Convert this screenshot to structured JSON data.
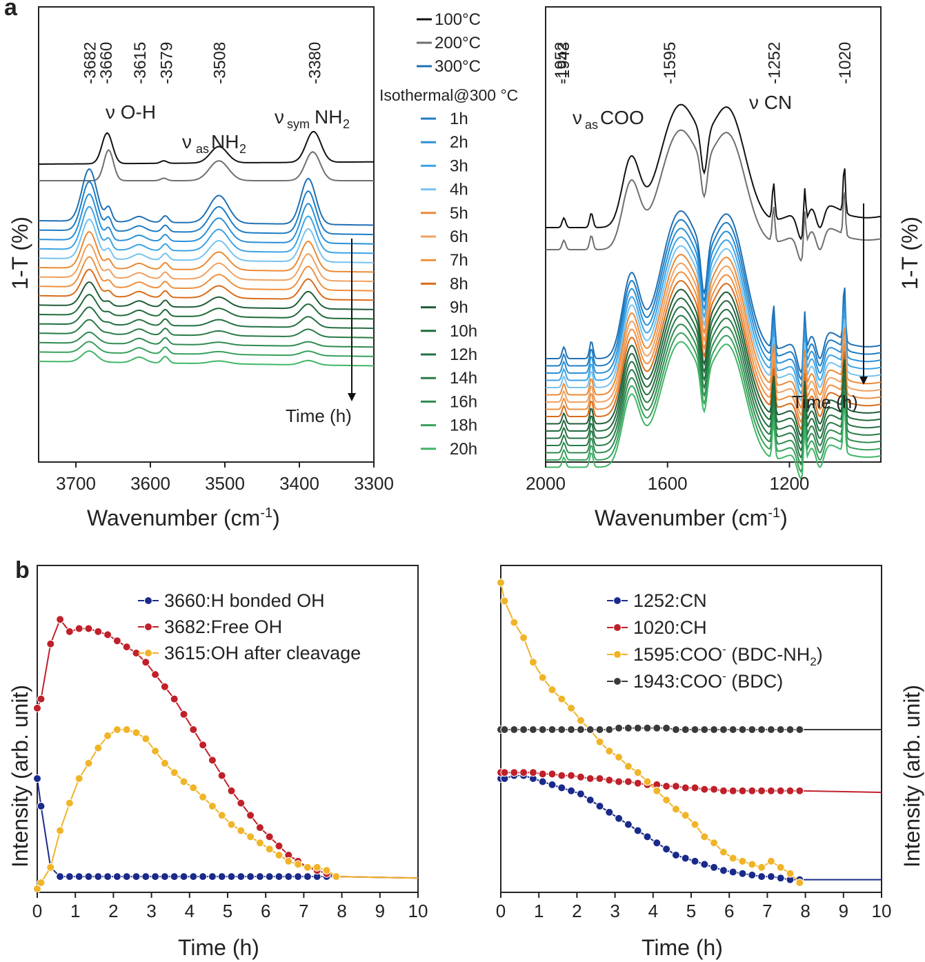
{
  "panels": {
    "a_label": "a",
    "b_label": "b"
  },
  "legend": {
    "temps": [
      "100°C",
      "200°C",
      "300°C"
    ],
    "iso_title": "Isothermal@300 °C",
    "hours": [
      "1h",
      "2h",
      "3h",
      "4h",
      "5h",
      "6h",
      "7h",
      "8h",
      "9h",
      "10h",
      "12h",
      "14h",
      "16h",
      "18h",
      "20h"
    ]
  },
  "palette": {
    "curves": [
      "#111111",
      "#6e6e6e",
      "#1f6fb3",
      "#1c7cc4",
      "#2a8fd6",
      "#3aa3e6",
      "#76c2ee",
      "#ea8a35",
      "#f0a060",
      "#ef8f3e",
      "#d86c1a",
      "#1f5c36",
      "#1f6a3b",
      "#236f41",
      "#287a47",
      "#2f8a50",
      "#36a05a",
      "#3fb566"
    ],
    "legend_hours": [
      "#1c7cc4",
      "#2a8fd6",
      "#3aa3e6",
      "#76c2ee",
      "#ea8a35",
      "#f0a060",
      "#ef8f3e",
      "#d86c1a",
      "#1f5c36",
      "#1f6a3b",
      "#236f41",
      "#287a47",
      "#2f8a50",
      "#36a05a",
      "#3fb566"
    ],
    "oh_bonded": "#1a2a8a",
    "oh_free": "#c0202a",
    "oh_cleave": "#f0b429",
    "bdc": "#3a3a3a"
  },
  "chart_data": [
    {
      "id": "a-left",
      "type": "line",
      "title": "",
      "xlabel": "Wavenumber (cm",
      "xlabel_sup": "-1",
      "xlabel_end": ")",
      "ylabel": "1-T (%)",
      "xlim": [
        3750,
        3300
      ],
      "xticks": [
        3700,
        3600,
        3500,
        3400,
        3300
      ],
      "peak_labels": [
        "-3682",
        "-3660",
        "-3615",
        "-3579",
        "-3508",
        "-3380"
      ],
      "peak_positions": [
        3682,
        3660,
        3615,
        3579,
        3508,
        3380
      ],
      "annotations": [
        "ν O-H",
        "ν",
        "as",
        "NH",
        "2",
        "ν",
        "sym",
        "NH",
        "2"
      ],
      "time_label": "Time (h)",
      "series_count": 18
    },
    {
      "id": "a-right",
      "type": "line",
      "xlabel": "Wavenumber (cm",
      "xlabel_sup": "-1",
      "xlabel_end": ")",
      "ylabel": "1-T (%)",
      "xlim": [
        2000,
        900
      ],
      "xticks": [
        2000,
        1600,
        1200
      ],
      "peak_labels": [
        "-1952",
        "-1943",
        "-1595",
        "-1252",
        "-1020"
      ],
      "peak_positions": [
        1952,
        1943,
        1595,
        1252,
        1020
      ],
      "annotations": [
        "ν",
        "as",
        "COO",
        "ν CN"
      ],
      "time_label": "Time (h)",
      "series_count": 18
    },
    {
      "id": "b-left",
      "type": "line",
      "xlabel": "Time (h)",
      "ylabel": "Intensity (arb. unit)",
      "xlim": [
        0,
        10
      ],
      "ylim": [
        0,
        1
      ],
      "xticks": [
        "0",
        "1",
        "2",
        "3",
        "4",
        "5",
        "6",
        "7",
        "8",
        "9",
        "10"
      ],
      "series": [
        {
          "name": "3660:H bonded OH",
          "color_key": "oh_bonded",
          "x": [
            0,
            0.1,
            0.35,
            0.6,
            0.85,
            1.1,
            1.35,
            1.6,
            1.85,
            2.1,
            2.35,
            2.6,
            2.85,
            3.1,
            3.35,
            3.6,
            3.85,
            4.1,
            4.35,
            4.6,
            4.85,
            5.1,
            5.35,
            5.6,
            5.85,
            6.1,
            6.35,
            6.6,
            6.85,
            7.1,
            7.35,
            7.6,
            7.85,
            10
          ],
          "values": [
            0.34,
            0.25,
            0.05,
            0.02,
            0.02,
            0.02,
            0.02,
            0.02,
            0.02,
            0.02,
            0.02,
            0.02,
            0.02,
            0.02,
            0.02,
            0.02,
            0.02,
            0.02,
            0.02,
            0.02,
            0.02,
            0.02,
            0.02,
            0.02,
            0.02,
            0.02,
            0.02,
            0.02,
            0.02,
            0.02,
            0.02,
            0.02,
            0.02,
            0.015
          ]
        },
        {
          "name": "3682:Free OH",
          "color_key": "oh_free",
          "x": [
            0,
            0.1,
            0.35,
            0.6,
            0.85,
            1.1,
            1.35,
            1.6,
            1.85,
            2.1,
            2.35,
            2.6,
            2.85,
            3.1,
            3.35,
            3.6,
            3.85,
            4.1,
            4.35,
            4.6,
            4.85,
            5.1,
            5.35,
            5.6,
            5.85,
            6.1,
            6.35,
            6.6,
            6.85,
            7.1,
            7.35,
            7.6,
            7.85,
            10
          ],
          "values": [
            0.57,
            0.6,
            0.78,
            0.86,
            0.82,
            0.83,
            0.83,
            0.82,
            0.81,
            0.79,
            0.77,
            0.75,
            0.72,
            0.68,
            0.64,
            0.6,
            0.55,
            0.5,
            0.45,
            0.4,
            0.35,
            0.3,
            0.26,
            0.22,
            0.18,
            0.15,
            0.12,
            0.09,
            0.07,
            0.05,
            0.04,
            0.03,
            0.02,
            0.015
          ]
        },
        {
          "name": "3615:OH after cleavage",
          "color_key": "oh_cleave",
          "x": [
            0,
            0.1,
            0.35,
            0.6,
            0.85,
            1.1,
            1.35,
            1.6,
            1.85,
            2.1,
            2.35,
            2.6,
            2.85,
            3.1,
            3.35,
            3.6,
            3.85,
            4.1,
            4.35,
            4.6,
            4.85,
            5.1,
            5.35,
            5.6,
            5.85,
            6.1,
            6.35,
            6.6,
            6.85,
            7.1,
            7.35,
            7.6,
            7.85,
            10
          ],
          "values": [
            -0.02,
            0.0,
            0.05,
            0.17,
            0.26,
            0.34,
            0.39,
            0.44,
            0.48,
            0.5,
            0.5,
            0.49,
            0.47,
            0.43,
            0.39,
            0.36,
            0.33,
            0.31,
            0.28,
            0.25,
            0.22,
            0.19,
            0.17,
            0.15,
            0.13,
            0.11,
            0.09,
            0.07,
            0.06,
            0.05,
            0.05,
            0.04,
            0.02,
            0.015
          ]
        }
      ]
    },
    {
      "id": "b-right",
      "type": "line",
      "xlabel": "Time (h)",
      "ylabel": "Intensity (arb. unit)",
      "xlim": [
        0,
        10
      ],
      "ylim": [
        0,
        1
      ],
      "xticks": [
        "0",
        "1",
        "2",
        "3",
        "4",
        "5",
        "6",
        "7",
        "8",
        "9",
        "10"
      ],
      "series": [
        {
          "name": "1252:CN",
          "color_key": "oh_bonded",
          "x": [
            0,
            0.1,
            0.35,
            0.6,
            0.85,
            1.1,
            1.35,
            1.6,
            1.85,
            2.1,
            2.35,
            2.6,
            2.85,
            3.1,
            3.35,
            3.6,
            3.85,
            4.1,
            4.35,
            4.6,
            4.85,
            5.1,
            5.35,
            5.6,
            5.85,
            6.1,
            6.35,
            6.6,
            6.85,
            7.1,
            7.35,
            7.6,
            7.85,
            10
          ],
          "values": [
            0.34,
            0.34,
            0.35,
            0.35,
            0.34,
            0.33,
            0.32,
            0.31,
            0.3,
            0.29,
            0.27,
            0.25,
            0.23,
            0.21,
            0.19,
            0.17,
            0.15,
            0.13,
            0.11,
            0.09,
            0.08,
            0.07,
            0.06,
            0.05,
            0.04,
            0.035,
            0.03,
            0.025,
            0.02,
            0.02,
            0.015,
            0.01,
            0.01,
            0.01
          ]
        },
        {
          "name": "1020:CH",
          "color_key": "oh_free",
          "x": [
            0,
            0.1,
            0.35,
            0.6,
            0.85,
            1.1,
            1.35,
            1.6,
            1.85,
            2.1,
            2.35,
            2.6,
            2.85,
            3.1,
            3.35,
            3.6,
            3.85,
            4.1,
            4.35,
            4.6,
            4.85,
            5.1,
            5.35,
            5.6,
            5.85,
            6.1,
            6.35,
            6.6,
            6.85,
            7.1,
            7.35,
            7.6,
            7.85,
            10
          ],
          "values": [
            0.36,
            0.36,
            0.36,
            0.36,
            0.36,
            0.355,
            0.355,
            0.35,
            0.35,
            0.345,
            0.34,
            0.34,
            0.335,
            0.33,
            0.33,
            0.325,
            0.32,
            0.32,
            0.315,
            0.315,
            0.31,
            0.31,
            0.305,
            0.305,
            0.3,
            0.3,
            0.3,
            0.3,
            0.3,
            0.3,
            0.3,
            0.3,
            0.3,
            0.295
          ]
        },
        {
          "name": "1595:COO",
          "name_sup": "-",
          "name_rest": " (BDC-NH",
          "name_sub": "2",
          "name_end": ")",
          "color_key": "oh_cleave",
          "x": [
            0,
            0.1,
            0.35,
            0.6,
            0.85,
            1.1,
            1.35,
            1.6,
            1.85,
            2.1,
            2.35,
            2.6,
            2.85,
            3.1,
            3.35,
            3.6,
            3.85,
            4.1,
            4.35,
            4.6,
            4.85,
            5.1,
            5.35,
            5.6,
            5.85,
            6.1,
            6.35,
            6.6,
            6.85,
            7.1,
            7.35,
            7.6,
            7.85
          ],
          "values": [
            0.98,
            0.92,
            0.85,
            0.8,
            0.72,
            0.67,
            0.63,
            0.6,
            0.57,
            0.53,
            0.5,
            0.46,
            0.43,
            0.41,
            0.38,
            0.36,
            0.33,
            0.3,
            0.27,
            0.24,
            0.22,
            0.19,
            0.15,
            0.13,
            0.1,
            0.08,
            0.07,
            0.06,
            0.05,
            0.07,
            0.05,
            0.03,
            0.0
          ]
        },
        {
          "name": "1943:COO",
          "name_sup": "-",
          "name_rest": " (BDC)",
          "color_key": "bdc",
          "x": [
            0,
            0.1,
            0.35,
            0.6,
            0.85,
            1.1,
            1.35,
            1.6,
            1.85,
            2.1,
            2.35,
            2.6,
            2.85,
            3.1,
            3.35,
            3.6,
            3.85,
            4.1,
            4.35,
            4.6,
            4.85,
            5.1,
            5.35,
            5.6,
            5.85,
            6.1,
            6.35,
            6.6,
            6.85,
            7.1,
            7.35,
            7.6,
            7.85,
            10
          ],
          "values": [
            0.5,
            0.5,
            0.5,
            0.5,
            0.5,
            0.5,
            0.5,
            0.5,
            0.5,
            0.5,
            0.5,
            0.5,
            0.5,
            0.505,
            0.505,
            0.505,
            0.505,
            0.505,
            0.505,
            0.5,
            0.5,
            0.5,
            0.5,
            0.5,
            0.5,
            0.5,
            0.5,
            0.5,
            0.5,
            0.5,
            0.5,
            0.5,
            0.5,
            0.5
          ]
        }
      ]
    }
  ]
}
